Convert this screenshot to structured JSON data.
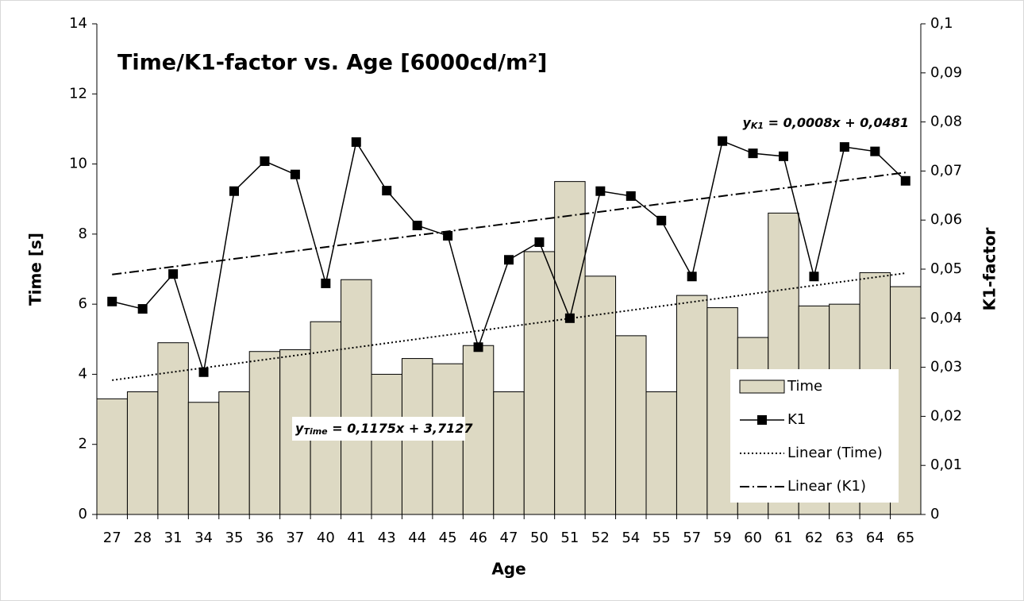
{
  "chart_data": {
    "type": "bar_line",
    "title": "Time/K1-factor vs. Age [6000cd/m²]",
    "xlabel": "Age",
    "ylabel": "Time [s]",
    "y2label": "K1-factor",
    "categories": [
      "27",
      "28",
      "31",
      "34",
      "35",
      "36",
      "37",
      "40",
      "41",
      "43",
      "44",
      "45",
      "46",
      "47",
      "50",
      "51",
      "52",
      "54",
      "55",
      "57",
      "59",
      "60",
      "61",
      "62",
      "63",
      "64",
      "65"
    ],
    "series": [
      {
        "name": "Time",
        "type": "bar",
        "color": "#ddd9c3",
        "axis": "y",
        "values": [
          3.3,
          3.5,
          4.9,
          3.2,
          3.5,
          4.65,
          4.7,
          5.5,
          6.7,
          4.0,
          4.45,
          4.3,
          4.82,
          3.5,
          7.5,
          9.5,
          6.8,
          5.1,
          3.5,
          6.25,
          5.9,
          5.05,
          8.6,
          5.95,
          6.0,
          6.9,
          6.5
        ]
      },
      {
        "name": "K1",
        "type": "line",
        "color": "#000000",
        "axis": "y2",
        "values": [
          0.0434,
          0.0419,
          0.049,
          0.029,
          0.0659,
          0.072,
          0.0693,
          0.0471,
          0.0759,
          0.066,
          0.0589,
          0.0568,
          0.0341,
          0.0519,
          0.0555,
          0.04,
          0.0659,
          0.0649,
          0.0599,
          0.0485,
          0.0761,
          0.0736,
          0.073,
          0.0485,
          0.0749,
          0.074,
          0.068
        ]
      }
    ],
    "trendlines": [
      {
        "name": "Linear (Time)",
        "series": 0,
        "axis": "y",
        "slope": 0.1175,
        "intercept": 3.7127,
        "dash": "2 3",
        "equation": {
          "var": "y",
          "sub": "Time",
          "rhs": " = 0,1175x + 3,7127"
        }
      },
      {
        "name": "Linear (K1)",
        "series": 1,
        "axis": "y2",
        "slope": 0.0008,
        "intercept": 0.0481,
        "dash": "12 4 2 4",
        "equation": {
          "var": "y",
          "sub": "K1",
          "rhs": " = 0,0008x + 0,0481"
        }
      }
    ],
    "ylim": [
      0,
      14
    ],
    "yticks": [
      0,
      2,
      4,
      6,
      8,
      10,
      12,
      14
    ],
    "y2lim": [
      0,
      0.1
    ],
    "y2ticks": [
      0,
      {
        "value": 0.01,
        "label": "0,01"
      },
      {
        "value": 0.02,
        "label": "0,02"
      },
      {
        "value": 0.03,
        "label": "0,03"
      },
      {
        "value": 0.04,
        "label": "0,04"
      },
      {
        "value": 0.05,
        "label": "0,05"
      },
      {
        "value": 0.06,
        "label": "0,06"
      },
      {
        "value": 0.07,
        "label": "0,07"
      },
      {
        "value": 0.08,
        "label": "0,08"
      },
      {
        "value": 0.09,
        "label": "0,09"
      },
      {
        "value": 0.1,
        "label": "0,1"
      }
    ],
    "grid": false,
    "legend": "lower right"
  }
}
